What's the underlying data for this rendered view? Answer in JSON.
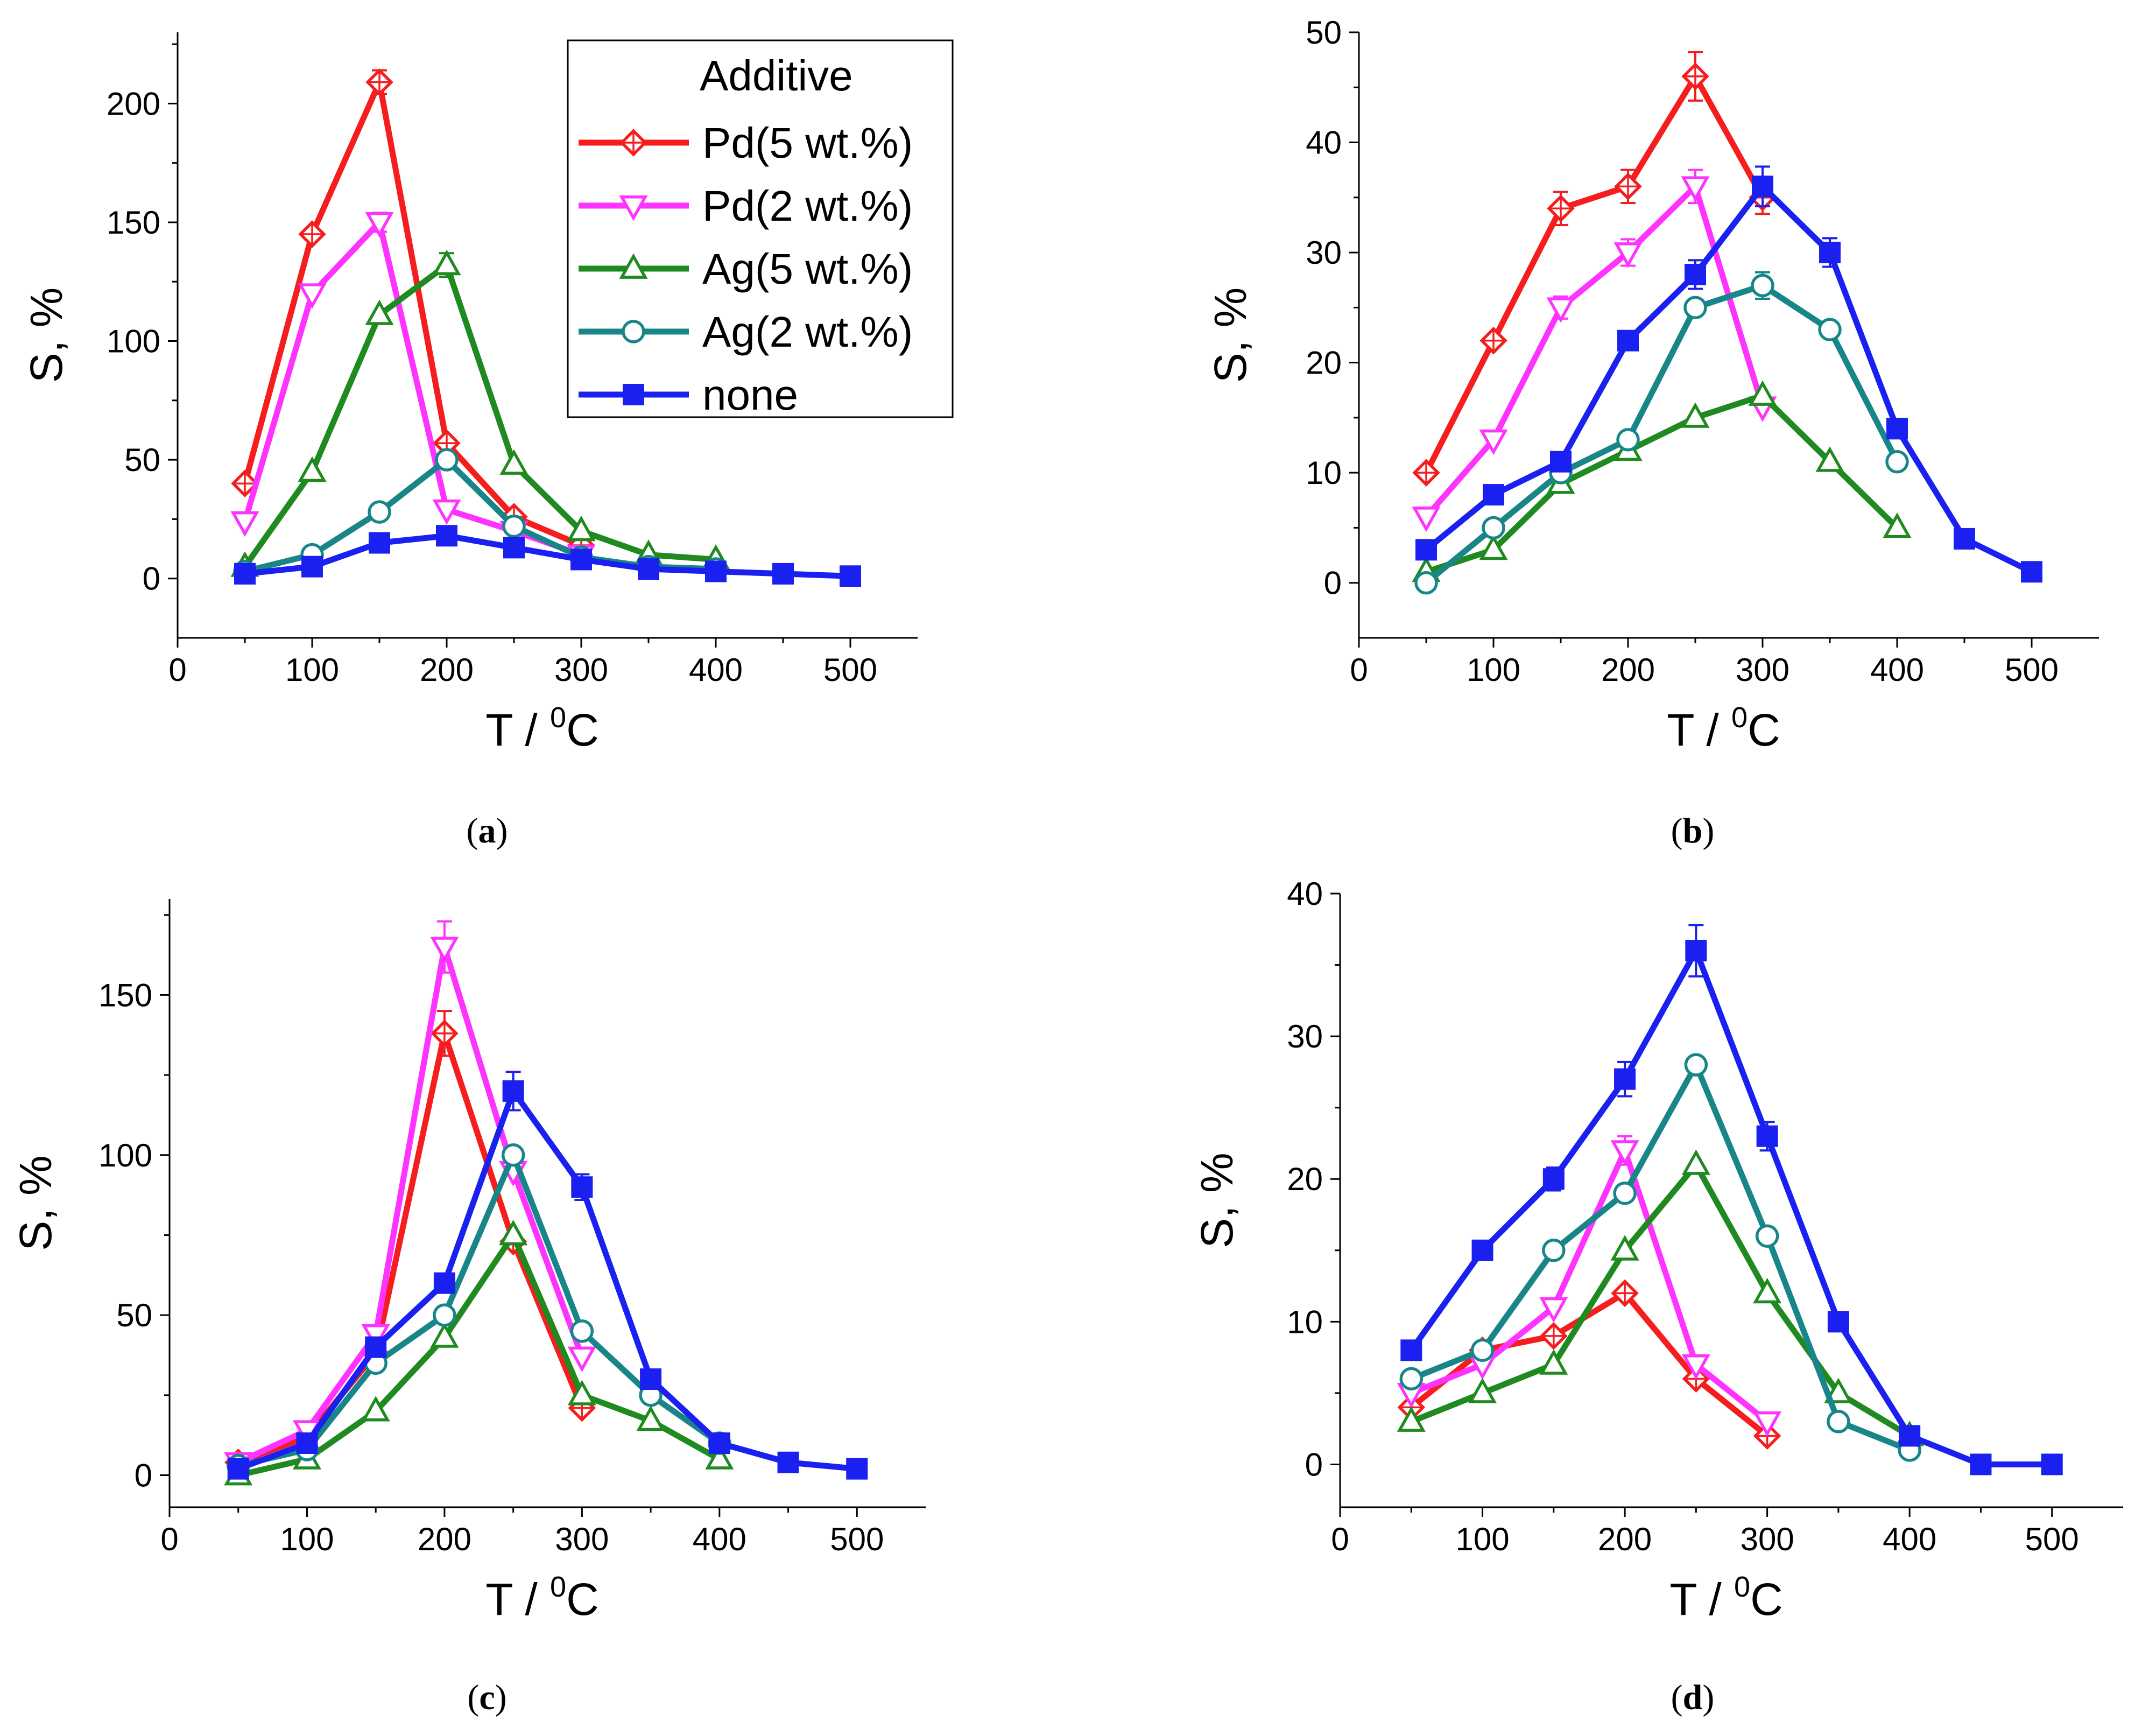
{
  "figure": {
    "description_labels": [
      "(a)",
      "(b)",
      "(c)",
      "(d)"
    ]
  },
  "legend": {
    "title": "Additive",
    "entries": [
      "Pd(5 wt.%)",
      "Pd(2 wt.%)",
      "Ag(5 wt.%)",
      "Ag(2 wt.%)",
      "none"
    ]
  },
  "series_styles": {
    "Pd(5 wt.%)": {
      "color": "#f51d1d",
      "marker": "diamond"
    },
    "Pd(2 wt.%)": {
      "color": "#ff33ff",
      "marker": "triangle-down"
    },
    "Ag(5 wt.%)": {
      "color": "#1f8a1f",
      "marker": "triangle-up"
    },
    "Ag(2 wt.%)": {
      "color": "#188688",
      "marker": "circle"
    },
    "none": {
      "color": "#1a20f0",
      "marker": "square-filled"
    }
  },
  "chart_data": [
    {
      "id": "a",
      "type": "line",
      "panel_label": "a",
      "xlabel": "T / ",
      "xlabel_sup": "0",
      "xlabel_unit": "C",
      "ylabel": "S, %",
      "xlim": [
        0,
        550
      ],
      "ylim": [
        -25,
        230
      ],
      "xticks": [
        0,
        100,
        200,
        300,
        400,
        500
      ],
      "yticks": [
        0,
        50,
        100,
        150,
        200
      ],
      "legend": "top-right",
      "series": [
        {
          "name": "Pd(5 wt.%)",
          "x": [
            50,
            100,
            150,
            200,
            250,
            300
          ],
          "values": [
            40,
            145,
            209,
            57,
            26,
            14
          ],
          "err": [
            0,
            0,
            5,
            0,
            0,
            0
          ]
        },
        {
          "name": "Pd(2 wt.%)",
          "x": [
            50,
            100,
            150,
            200,
            250,
            300
          ],
          "values": [
            24,
            120,
            150,
            29,
            20,
            10
          ],
          "err": [
            0,
            0,
            4,
            0,
            0,
            0
          ]
        },
        {
          "name": "Ag(5 wt.%)",
          "x": [
            50,
            100,
            150,
            200,
            250,
            300,
            350,
            400
          ],
          "values": [
            5,
            45,
            111,
            132,
            48,
            20,
            10,
            8
          ],
          "err": [
            0,
            0,
            0,
            5,
            0,
            0,
            0,
            0
          ]
        },
        {
          "name": "Ag(2 wt.%)",
          "x": [
            50,
            100,
            150,
            200,
            250,
            300,
            350,
            400
          ],
          "values": [
            3,
            10,
            28,
            50,
            22,
            9,
            5,
            4
          ],
          "err": [
            0,
            0,
            0,
            0,
            0,
            0,
            0,
            0
          ]
        },
        {
          "name": "none",
          "x": [
            50,
            100,
            150,
            200,
            250,
            300,
            350,
            400,
            450,
            500
          ],
          "values": [
            2,
            5,
            15,
            18,
            13,
            8,
            4,
            3,
            2,
            1
          ],
          "err": [
            0,
            0,
            0,
            0,
            0,
            0,
            0,
            0,
            0,
            0
          ]
        }
      ]
    },
    {
      "id": "b",
      "type": "line",
      "panel_label": "b",
      "xlabel": "T / ",
      "xlabel_sup": "0",
      "xlabel_unit": "C",
      "ylabel": "S, %",
      "xlim": [
        0,
        550
      ],
      "ylim": [
        -5,
        50
      ],
      "xticks": [
        0,
        100,
        200,
        300,
        400,
        500
      ],
      "yticks": [
        0,
        10,
        20,
        30,
        40,
        50
      ],
      "legend": "none",
      "series": [
        {
          "name": "Pd(5 wt.%)",
          "x": [
            50,
            100,
            150,
            200,
            250,
            300
          ],
          "values": [
            10,
            22,
            34,
            36,
            46,
            35
          ],
          "err": [
            0,
            0,
            1.5,
            1.5,
            2.2,
            1.5
          ]
        },
        {
          "name": "Pd(2 wt.%)",
          "x": [
            50,
            100,
            150,
            200,
            250,
            300
          ],
          "values": [
            6,
            13,
            25,
            30,
            36,
            16
          ],
          "err": [
            0,
            0,
            1,
            1.2,
            1.5,
            0
          ]
        },
        {
          "name": "Ag(5 wt.%)",
          "x": [
            50,
            100,
            150,
            200,
            250,
            300,
            350,
            400
          ],
          "values": [
            1,
            3,
            9,
            12,
            15,
            17,
            11,
            5
          ],
          "err": [
            0,
            0,
            0,
            0,
            0,
            0,
            0,
            0
          ]
        },
        {
          "name": "Ag(2 wt.%)",
          "x": [
            50,
            100,
            150,
            200,
            250,
            300,
            350,
            400
          ],
          "values": [
            0,
            5,
            10,
            13,
            25,
            27,
            23,
            11
          ],
          "err": [
            0,
            0,
            0,
            0,
            0,
            1.2,
            0,
            0
          ]
        },
        {
          "name": "none",
          "x": [
            50,
            100,
            150,
            200,
            250,
            300,
            350,
            400,
            450,
            500
          ],
          "values": [
            3,
            8,
            11,
            22,
            28,
            36,
            30,
            14,
            4,
            1
          ],
          "err": [
            0,
            0,
            0,
            0.8,
            1.3,
            1.8,
            1.3,
            0,
            0,
            0
          ]
        }
      ]
    },
    {
      "id": "c",
      "type": "line",
      "panel_label": "c",
      "xlabel": "T / ",
      "xlabel_sup": "0",
      "xlabel_unit": "C",
      "ylabel": "S, %",
      "xlim": [
        0,
        550
      ],
      "ylim": [
        -10,
        180
      ],
      "xticks": [
        0,
        100,
        200,
        300,
        400,
        500
      ],
      "yticks": [
        0,
        50,
        100,
        150
      ],
      "legend": "none",
      "series": [
        {
          "name": "Pd(5 wt.%)",
          "x": [
            50,
            100,
            150,
            200,
            250,
            300
          ],
          "values": [
            4,
            12,
            38,
            138,
            73,
            21
          ],
          "err": [
            0,
            0,
            0,
            7,
            0,
            0
          ]
        },
        {
          "name": "Pd(2 wt.%)",
          "x": [
            50,
            100,
            150,
            200,
            250,
            300
          ],
          "values": [
            4,
            14,
            44,
            165,
            95,
            37
          ],
          "err": [
            0,
            0,
            0,
            8,
            0,
            0
          ]
        },
        {
          "name": "Ag(5 wt.%)",
          "x": [
            50,
            100,
            150,
            200,
            250,
            300,
            350,
            400
          ],
          "values": [
            0,
            5,
            20,
            43,
            75,
            25,
            17,
            5
          ],
          "err": [
            0,
            0,
            0,
            0,
            0,
            0,
            0,
            0
          ]
        },
        {
          "name": "Ag(2 wt.%)",
          "x": [
            50,
            100,
            150,
            200,
            250,
            300,
            350,
            400
          ],
          "values": [
            3,
            8,
            35,
            50,
            100,
            45,
            25,
            10
          ],
          "err": [
            0,
            0,
            0,
            0,
            0,
            0,
            0,
            0
          ]
        },
        {
          "name": "none",
          "x": [
            50,
            100,
            150,
            200,
            250,
            300,
            350,
            400,
            450,
            500
          ],
          "values": [
            2,
            10,
            40,
            60,
            120,
            90,
            30,
            10,
            4,
            2
          ],
          "err": [
            0,
            0,
            0,
            0,
            6,
            4,
            0,
            0,
            0,
            0
          ]
        }
      ]
    },
    {
      "id": "d",
      "type": "line",
      "panel_label": "d",
      "xlabel": "T / ",
      "xlabel_sup": "0",
      "xlabel_unit": "C",
      "ylabel": "S, %",
      "xlim": [
        0,
        550
      ],
      "ylim": [
        -3,
        40
      ],
      "xticks": [
        0,
        100,
        200,
        300,
        400,
        500
      ],
      "yticks": [
        0,
        10,
        20,
        30,
        40
      ],
      "legend": "none",
      "series": [
        {
          "name": "Pd(5 wt.%)",
          "x": [
            50,
            100,
            150,
            200,
            250,
            300
          ],
          "values": [
            4,
            8,
            9,
            12,
            6,
            2
          ],
          "err": [
            0,
            0,
            0,
            0,
            0,
            0
          ]
        },
        {
          "name": "Pd(2 wt.%)",
          "x": [
            50,
            100,
            150,
            200,
            250,
            300
          ],
          "values": [
            5,
            7,
            11,
            22,
            7,
            3
          ],
          "err": [
            0,
            0,
            0,
            1,
            0,
            0
          ]
        },
        {
          "name": "Ag(5 wt.%)",
          "x": [
            50,
            100,
            150,
            200,
            250,
            300,
            350,
            400
          ],
          "values": [
            3,
            5,
            7,
            15,
            21,
            12,
            5,
            2
          ],
          "err": [
            0,
            0,
            0,
            0,
            0,
            0,
            0,
            0
          ]
        },
        {
          "name": "Ag(2 wt.%)",
          "x": [
            50,
            100,
            150,
            200,
            250,
            300,
            350,
            400
          ],
          "values": [
            6,
            8,
            15,
            19,
            28,
            16,
            3,
            1
          ],
          "err": [
            0,
            0,
            0,
            0,
            0,
            0,
            0,
            0
          ]
        },
        {
          "name": "none",
          "x": [
            50,
            100,
            150,
            200,
            250,
            300,
            350,
            400,
            450,
            500
          ],
          "values": [
            8,
            15,
            20,
            27,
            36,
            23,
            10,
            2,
            0,
            0
          ],
          "err": [
            0,
            0,
            0.8,
            1.2,
            1.8,
            1.0,
            0,
            0,
            0,
            0
          ]
        }
      ]
    }
  ]
}
